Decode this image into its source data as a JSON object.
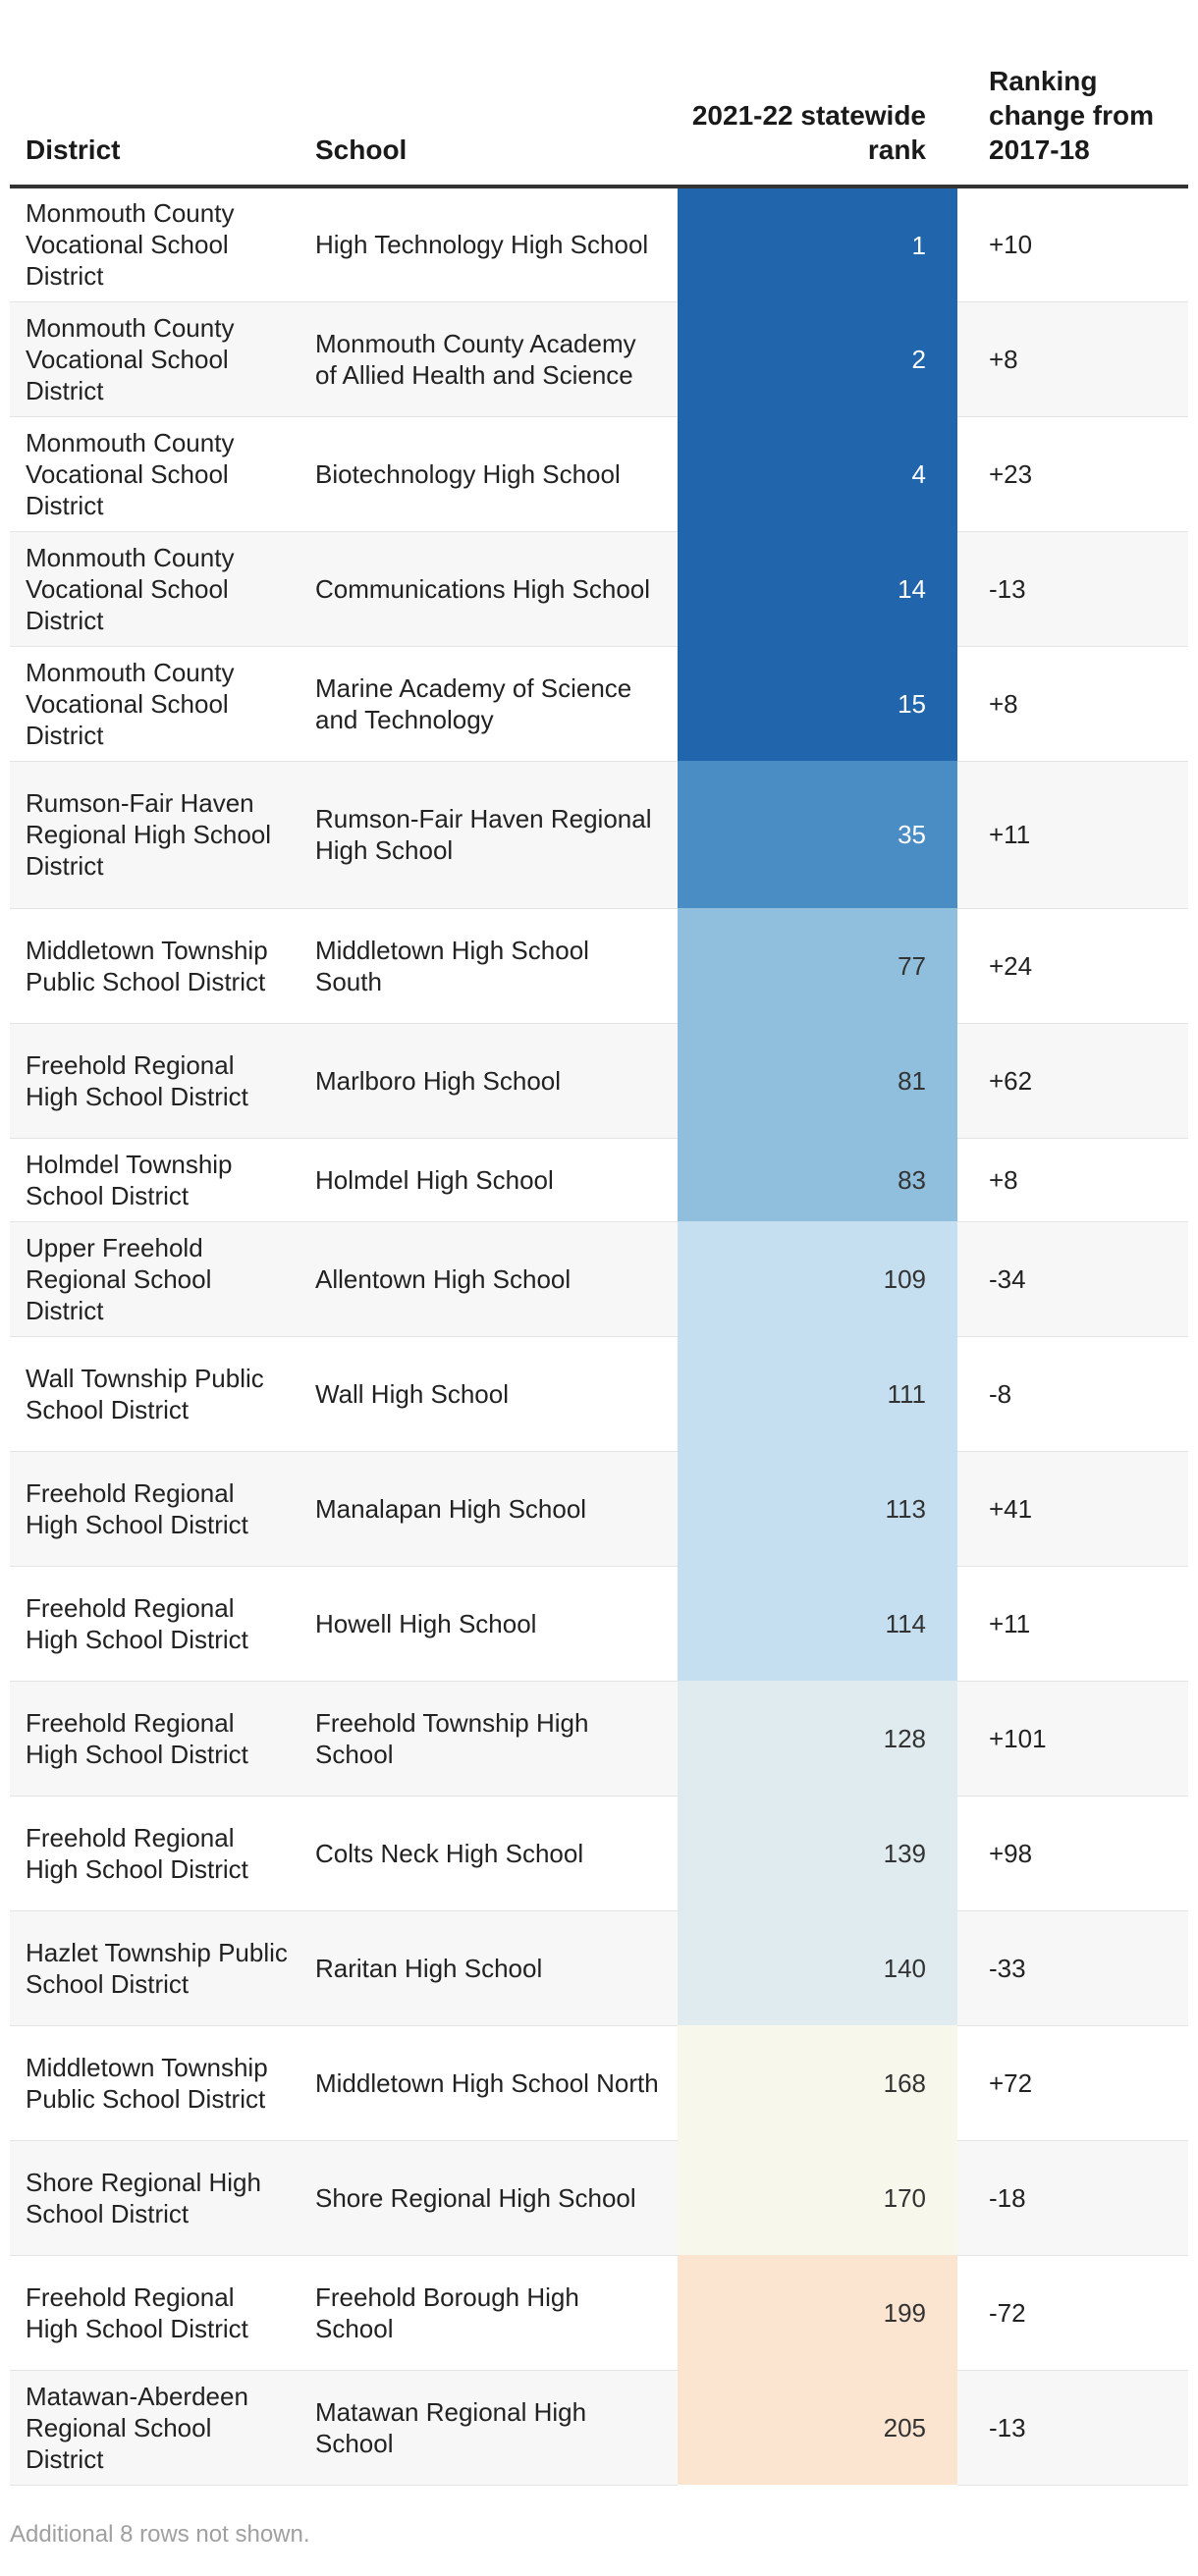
{
  "chart_data": {
    "type": "table",
    "columns": [
      "District",
      "School",
      "2021-22 statewide rank",
      "Ranking change from 2017-18"
    ],
    "rows": [
      {
        "district": "Monmouth County Vocational School District",
        "school": "High Technology High School",
        "rank": 1,
        "change": "+10"
      },
      {
        "district": "Monmouth County Vocational School District",
        "school": "Monmouth County Academy of Allied Health and Science",
        "rank": 2,
        "change": "+8"
      },
      {
        "district": "Monmouth County Vocational School District",
        "school": "Biotechnology High School",
        "rank": 4,
        "change": "+23"
      },
      {
        "district": "Monmouth County Vocational School District",
        "school": "Communications High School",
        "rank": 14,
        "change": "-13"
      },
      {
        "district": "Monmouth County Vocational School District",
        "school": "Marine Academy of Science and Technology",
        "rank": 15,
        "change": "+8"
      },
      {
        "district": "Rumson-Fair Haven Regional High School District",
        "school": "Rumson-Fair Haven Regional High School",
        "rank": 35,
        "change": "+11"
      },
      {
        "district": "Middletown Township Public School District",
        "school": "Middletown High School South",
        "rank": 77,
        "change": "+24"
      },
      {
        "district": "Freehold Regional High School District",
        "school": "Marlboro High School",
        "rank": 81,
        "change": "+62"
      },
      {
        "district": "Holmdel Township School District",
        "school": "Holmdel High School",
        "rank": 83,
        "change": "+8"
      },
      {
        "district": "Upper Freehold Regional School District",
        "school": "Allentown High School",
        "rank": 109,
        "change": "-34"
      },
      {
        "district": "Wall Township Public School District",
        "school": "Wall High School",
        "rank": 111,
        "change": "-8"
      },
      {
        "district": "Freehold Regional High School District",
        "school": "Manalapan High School",
        "rank": 113,
        "change": "+41"
      },
      {
        "district": "Freehold Regional High School District",
        "school": "Howell High School",
        "rank": 114,
        "change": "+11"
      },
      {
        "district": "Freehold Regional High School District",
        "school": "Freehold Township High School",
        "rank": 128,
        "change": "+101"
      },
      {
        "district": "Freehold Regional High School District",
        "school": "Colts Neck High School",
        "rank": 139,
        "change": "+98"
      },
      {
        "district": "Hazlet Township Public School District",
        "school": "Raritan High School",
        "rank": 140,
        "change": "-33"
      },
      {
        "district": "Middletown Township Public School District",
        "school": "Middletown High School North",
        "rank": 168,
        "change": "+72"
      },
      {
        "district": "Shore Regional High School District",
        "school": "Shore Regional High School",
        "rank": 170,
        "change": "-18"
      },
      {
        "district": "Freehold Regional High School District",
        "school": "Freehold Borough High School",
        "rank": 199,
        "change": "-72"
      },
      {
        "district": "Matawan-Aberdeen Regional School District",
        "school": "Matawan Regional High School",
        "rank": 205,
        "change": "-13"
      }
    ],
    "rank_color_scale": [
      "#2166ac",
      "#4a8cc4",
      "#90bfde",
      "#c6dff0",
      "#dfebee",
      "#f7f7ec",
      "#fbe4d0"
    ],
    "footer_note": "Additional 8 rows not shown."
  }
}
